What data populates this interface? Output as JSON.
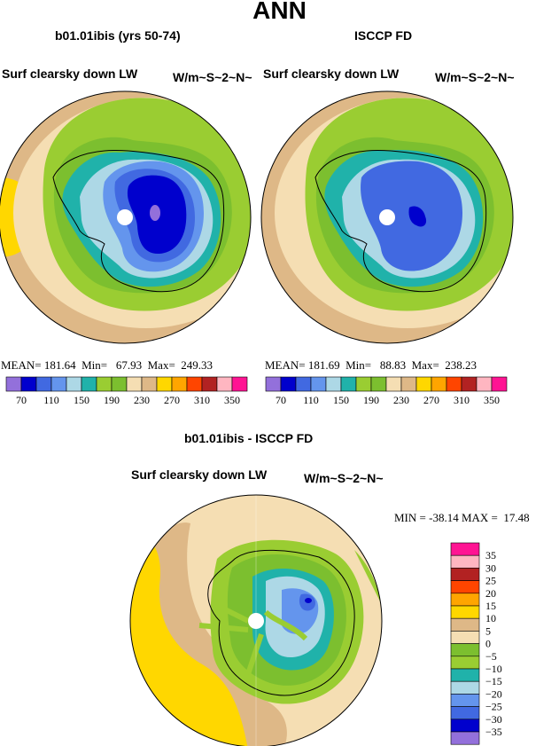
{
  "page_title": "ANN",
  "chart_data": [
    {
      "type": "polar-contour-map",
      "title": "b01.01ibis (yrs 50-74)",
      "variable": "Surf clearsky down LW",
      "units": "W/m~S~2~N~",
      "stats": {
        "mean_label": "MEAN=",
        "mean": "181.64",
        "min_label": "Min=",
        "min": "67.93",
        "max_label": "Max=",
        "max": "249.33"
      },
      "colorbar_ticks": [
        "70",
        "110",
        "150",
        "190",
        "230",
        "270",
        "310",
        "350"
      ]
    },
    {
      "type": "polar-contour-map",
      "title": "ISCCP FD",
      "variable": "Surf clearsky down LW",
      "units": "W/m~S~2~N~",
      "stats": {
        "mean_label": "MEAN=",
        "mean": "181.69",
        "min_label": "Min=",
        "min": "88.83",
        "max_label": "Max=",
        "max": "238.23"
      },
      "colorbar_ticks": [
        "70",
        "110",
        "150",
        "190",
        "230",
        "270",
        "310",
        "350"
      ]
    },
    {
      "type": "polar-contour-map",
      "title": "b01.01ibis - ISCCP FD",
      "variable": "Surf clearsky down LW",
      "units": "W/m~S~2~N~",
      "stats": {
        "min_label": "MIN =",
        "min": "-38.14",
        "max_label": "MAX =",
        "max": "17.48"
      },
      "colorbar_ticks": [
        "35",
        "30",
        "25",
        "20",
        "15",
        "10",
        "5",
        "0",
        "−5",
        "−10",
        "−15",
        "−20",
        "−25",
        "−30",
        "−35"
      ]
    }
  ],
  "colors": {
    "abs_palette": [
      "#9370db",
      "#0000cd",
      "#4169e1",
      "#6495ed",
      "#add8e6",
      "#20b2aa",
      "#9acd32",
      "#7cbf2f",
      "#f5deb3",
      "#deb887",
      "#ffd700",
      "#ffa500",
      "#ff4500",
      "#b22222",
      "#ffb6c1",
      "#ff1493"
    ],
    "diff_palette": [
      "#ff1493",
      "#ffb6c1",
      "#b22222",
      "#ff4500",
      "#ffa500",
      "#ffd700",
      "#deb887",
      "#f5deb3",
      "#7cbf2f",
      "#9acd32",
      "#20b2aa",
      "#add8e6",
      "#6495ed",
      "#4169e1",
      "#0000cd",
      "#9370db"
    ]
  }
}
